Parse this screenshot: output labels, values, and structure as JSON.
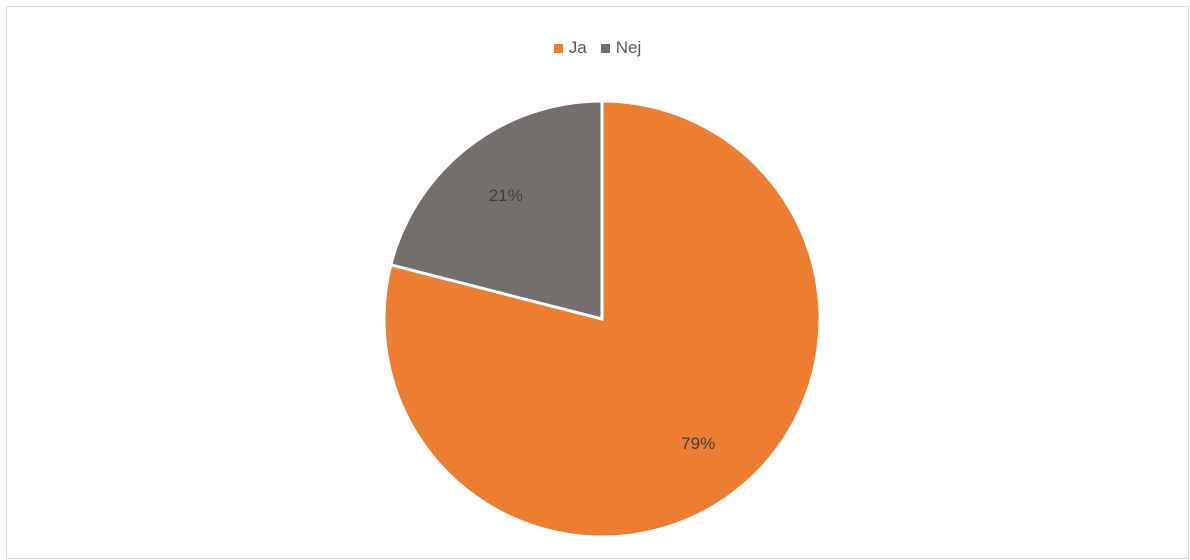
{
  "chart_data": {
    "type": "pie",
    "categories": [
      "Ja",
      "Nej"
    ],
    "values": [
      79,
      21
    ],
    "data_labels": [
      "79%",
      "21%"
    ],
    "colors": [
      "#ED7D31",
      "#736F6D"
    ],
    "legend_position": "top"
  }
}
